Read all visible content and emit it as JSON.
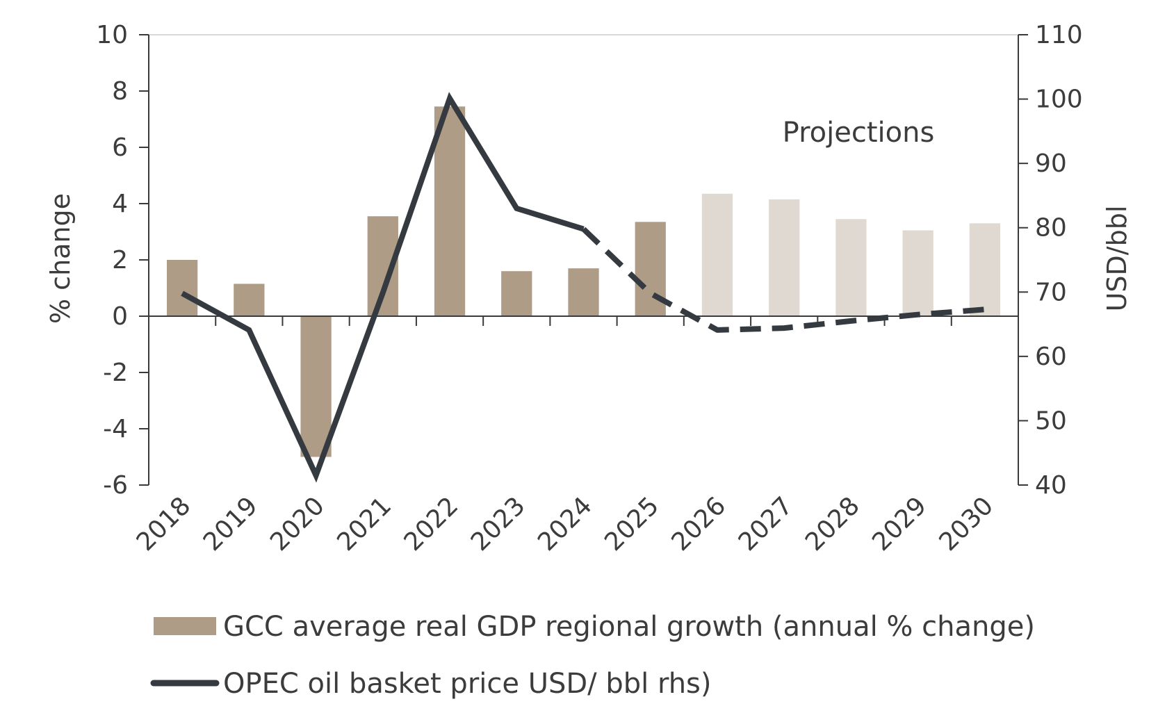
{
  "chart_data": {
    "type": "bar+line",
    "categories": [
      "2018",
      "2019",
      "2020",
      "2021",
      "2022",
      "2023",
      "2024",
      "2025",
      "2026",
      "2027",
      "2028",
      "2029",
      "2030"
    ],
    "series": [
      {
        "name": "GCC average real GDP regional growth (annual % change)",
        "type": "bar",
        "axis": "left",
        "values": [
          2.0,
          1.15,
          -5.0,
          3.55,
          7.45,
          1.6,
          1.7,
          3.35,
          4.35,
          4.15,
          3.45,
          3.05,
          3.3
        ],
        "projected_from": "2026",
        "color": "#ae9c86",
        "projected_color": "#e0d9d1"
      },
      {
        "name": "OPEC oil basket price USD/ bbl rhs)",
        "type": "line",
        "axis": "right",
        "values": [
          69.8,
          64.1,
          41.5,
          69.9,
          100.1,
          83.0,
          79.8,
          69.8,
          64.1,
          64.4,
          65.5,
          66.5,
          67.3
        ],
        "dashed_from": "2024",
        "color": "#343a40"
      }
    ],
    "y_left": {
      "label": "% change",
      "ticks": [
        "10",
        "8",
        "6",
        "4",
        "2",
        "0",
        "-2",
        "-4",
        "-6"
      ],
      "range": [
        -6,
        10
      ]
    },
    "y_right": {
      "label": "USD/bbl",
      "ticks": [
        "110",
        "100",
        "90",
        "80",
        "70",
        "60",
        "50",
        "40"
      ],
      "range": [
        40,
        110
      ]
    },
    "annotation": "Projections",
    "legend_position": "bottom"
  }
}
